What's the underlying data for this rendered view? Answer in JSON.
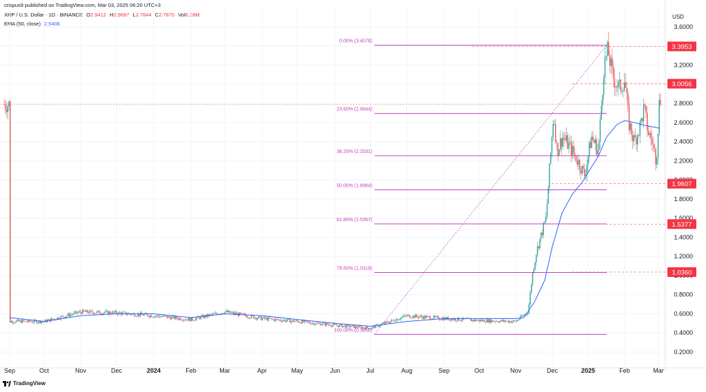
{
  "header": {
    "published": "crispus9 published on TradingView.com, Mar 03, 2025 06:20 UTC+3",
    "symbol": "XRP / U.S. Dollar · 1D · BINANCE",
    "o_label": "O",
    "o_value": "2.9412",
    "h_label": "H",
    "h_value": "2.9687",
    "l_label": "L",
    "l_value": "2.7644",
    "c_label": "C",
    "c_value": "2.7870",
    "vol_label": "Vol",
    "vol_value": "6.28M",
    "ema_label": "EMA (50, close)",
    "ema_value": "2.5406"
  },
  "footer": {
    "brand": "TradingView"
  },
  "colors": {
    "up": "#26a69a",
    "down": "#ef5350",
    "ema": "#2962ff",
    "fib": "#c040c0",
    "price_tag": "#f23645",
    "grid": "#f0f3fa"
  },
  "chart_data": {
    "type": "candlestick",
    "currency": "USD",
    "y_ticks": [
      "3.6000",
      "3.4000",
      "3.2000",
      "3.0000",
      "2.8000",
      "2.6000",
      "2.4000",
      "2.2000",
      "2.0000",
      "1.8000",
      "1.6000",
      "1.4000",
      "1.2000",
      "1.0000",
      "0.8000",
      "0.6000",
      "0.4000",
      "0.2000"
    ],
    "ylim": [
      0.1,
      3.7
    ],
    "x_ticks": [
      "Sep",
      "Oct",
      "Nov",
      "Dec",
      "2024",
      "Feb",
      "Mar",
      "Apr",
      "May",
      "Jun",
      "Jul",
      "Aug",
      "Sep",
      "Oct",
      "Nov",
      "Dec",
      "2025",
      "Feb",
      "Mar"
    ],
    "x_tick_bold": [
      "2024",
      "2025"
    ],
    "price_tags": [
      "3.3953",
      "3.0056",
      "1.9607",
      "1.5377",
      "1.0360"
    ],
    "price_tag_values": [
      3.3953,
      3.0056,
      1.9607,
      1.5377,
      1.036
    ],
    "last_price": 2.787,
    "fib_levels": [
      {
        "label": "0.00% (3.4078)",
        "value": 3.4078
      },
      {
        "label": "23.60% (2.6944)",
        "value": 2.6944
      },
      {
        "label": "38.20% (2.2531)",
        "value": 2.2531
      },
      {
        "label": "50.00% (1.8964)",
        "value": 1.8964
      },
      {
        "label": "61.80% (1.5397)",
        "value": 1.5397
      },
      {
        "label": "78.60% (1.0319)",
        "value": 1.0319
      },
      {
        "label": "100.00% (0.3850)",
        "value": 0.385
      }
    ],
    "series": [
      {
        "name": "XRP / U.S. Dollar",
        "daily_close_anchors": [
          [
            "Sep",
            0.52
          ],
          [
            "Oct",
            0.52
          ],
          [
            "Nov",
            0.62
          ],
          [
            "Dec",
            0.61
          ],
          [
            "2024",
            0.58
          ],
          [
            "Feb",
            0.54
          ],
          [
            "Mar",
            0.62
          ],
          [
            "Apr",
            0.55
          ],
          [
            "May",
            0.52
          ],
          [
            "Jun",
            0.48
          ],
          [
            "Jul",
            0.45
          ],
          [
            "Aug",
            0.58
          ],
          [
            "Sep",
            0.55
          ],
          [
            "Oct",
            0.53
          ],
          [
            "Nov",
            0.52
          ],
          [
            "Dec",
            2.3
          ],
          [
            "2025",
            2.4
          ],
          [
            "Feb",
            2.6
          ],
          [
            "Mar",
            2.79
          ]
        ]
      },
      {
        "name": "EMA (50, close)",
        "anchors": [
          [
            "Sep",
            0.56
          ],
          [
            "Oct",
            0.52
          ],
          [
            "Nov",
            0.58
          ],
          [
            "Dec",
            0.6
          ],
          [
            "2024",
            0.6
          ],
          [
            "Feb",
            0.56
          ],
          [
            "Mar",
            0.6
          ],
          [
            "Apr",
            0.58
          ],
          [
            "May",
            0.54
          ],
          [
            "Jun",
            0.5
          ],
          [
            "Jul",
            0.47
          ],
          [
            "Aug",
            0.52
          ],
          [
            "Sep",
            0.55
          ],
          [
            "Oct",
            0.55
          ],
          [
            "Nov",
            0.55
          ],
          [
            "Dec",
            1.3
          ],
          [
            "2025",
            2.3
          ],
          [
            "Feb",
            2.6
          ],
          [
            "Mar",
            2.54
          ]
        ]
      }
    ]
  }
}
